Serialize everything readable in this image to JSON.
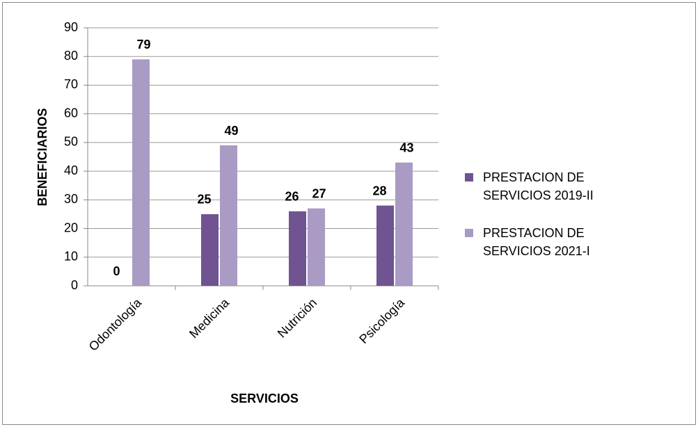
{
  "chart_data": {
    "type": "bar",
    "x_label": "SERVICIOS",
    "y_label": "BENEFICIARIOS",
    "categories": [
      "Odontología",
      "Medicina",
      "Nutrición",
      "Psicología"
    ],
    "series": [
      {
        "name": "PRESTACION DE SERVICIOS 2019-II",
        "color": "#6f5491",
        "values": [
          0,
          25,
          26,
          28
        ]
      },
      {
        "name": "PRESTACION DE SERVICIOS 2021-I",
        "color": "#a99bc4",
        "values": [
          79,
          49,
          27,
          43
        ]
      }
    ],
    "ylim": [
      0,
      90
    ],
    "yticks": [
      0,
      10,
      20,
      30,
      40,
      50,
      60,
      70,
      80,
      90
    ],
    "grid": true
  }
}
